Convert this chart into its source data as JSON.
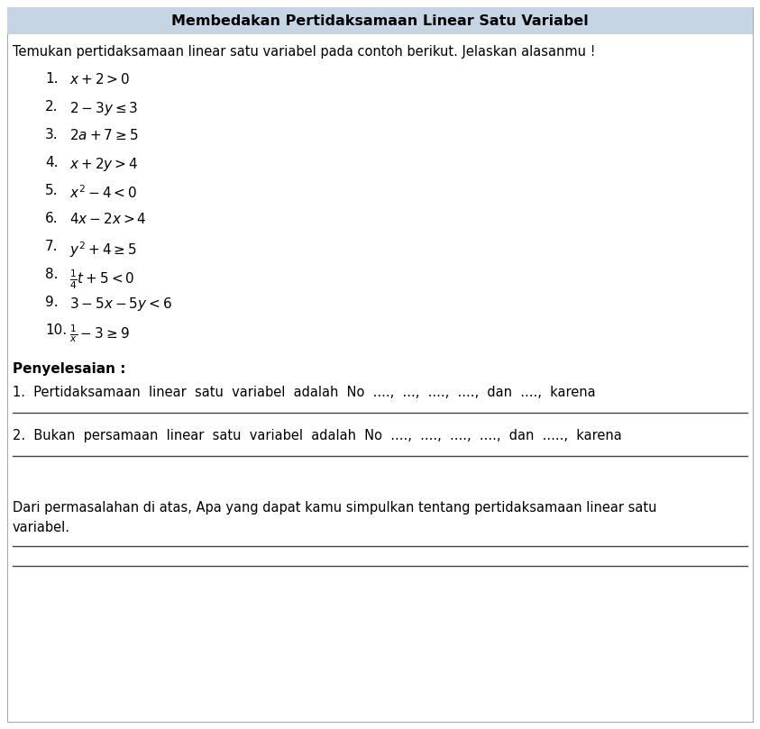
{
  "title": "Membedakan Pertidaksamaan Linear Satu Variabel",
  "title_bg": "#c5d5e4",
  "intro": "Temukan pertidaksamaan linear satu variabel pada contoh berikut. Jelaskan alasanmu !",
  "items": [
    {
      "num": "1.",
      "expr": "$x + 2 > 0$"
    },
    {
      "num": "2.",
      "expr": "$2 - 3y \\leq 3$"
    },
    {
      "num": "3.",
      "expr": "$2a + 7 \\geq 5$"
    },
    {
      "num": "4.",
      "expr": "$x + 2y > 4$"
    },
    {
      "num": "5.",
      "expr": "$x^2 - 4 < 0$"
    },
    {
      "num": "6.",
      "expr": "$4x - 2x > 4$"
    },
    {
      "num": "7.",
      "expr": "$y^2 + 4 \\geq 5$"
    },
    {
      "num": "8.",
      "expr": "$\\frac{1}{4}t + 5 < 0$"
    },
    {
      "num": "9.",
      "expr": "$3 - 5x - 5y < 6$"
    },
    {
      "num": "10.",
      "expr": "$\\frac{1}{x} - 3 \\geq 9$"
    }
  ],
  "penyelesaian_label": "Penyelesaian :",
  "ans1": "1.  Pertidaksamaan  linear  satu  variabel  adalah  No  ....,  ...,  ....,  ....,  dan  ....,  karena",
  "ans2": "2.  Bukan  persamaan  linear  satu  variabel  adalah  No  ....,  ....,  ....,  ....,  dan  .....,  karena",
  "conclusion_intro": "Dari permasalahan di atas, Apa yang dapat kamu simpulkan tentang pertidaksamaan linear satu",
  "conclusion_cont": "variabel.",
  "bg_color": "#ffffff",
  "text_color": "#000000",
  "line_color": "#444444",
  "border_color": "#aaaaaa"
}
